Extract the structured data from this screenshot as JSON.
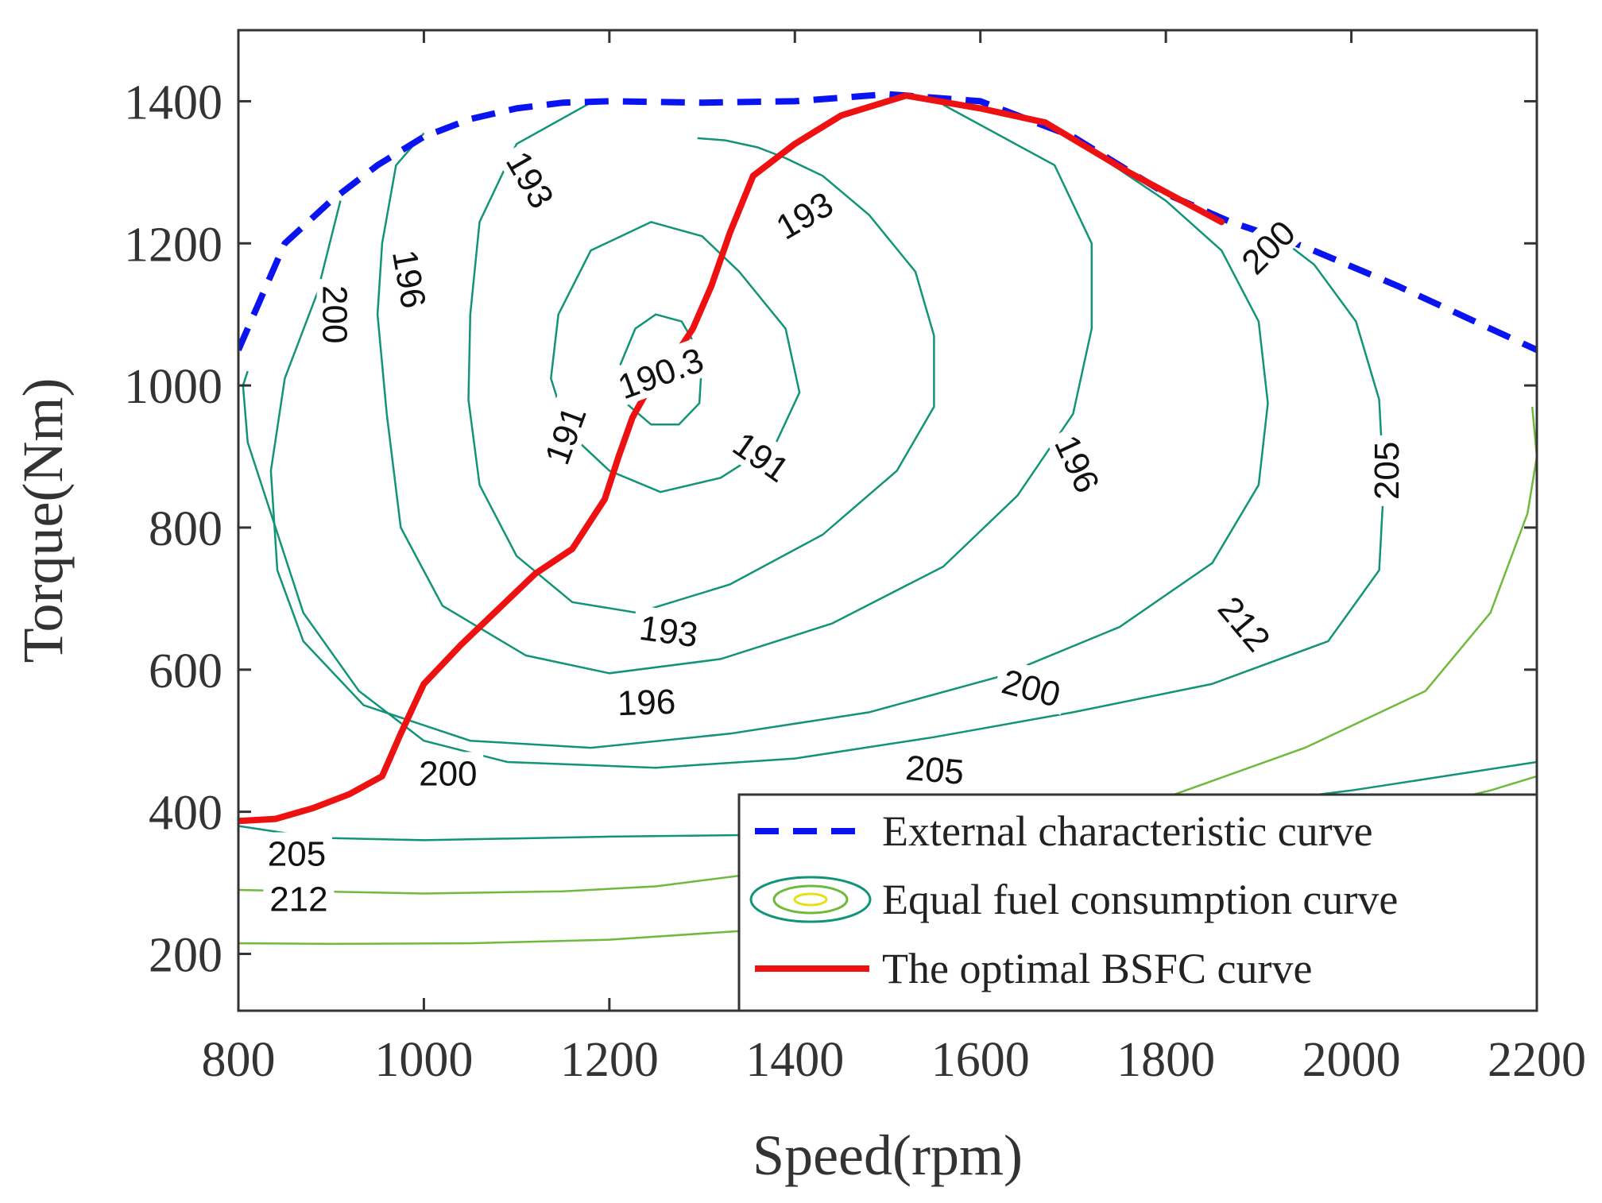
{
  "chart_data": {
    "type": "line",
    "title": "",
    "xlabel": "Speed(rpm)",
    "ylabel": "Torque(Nm)",
    "xlim": [
      800,
      2200
    ],
    "ylim": [
      120,
      1500
    ],
    "xticks": [
      "800",
      "1000",
      "1200",
      "1400",
      "1600",
      "1800",
      "2000",
      "2200"
    ],
    "yticks": [
      "200",
      "400",
      "600",
      "800",
      "1000",
      "1200",
      "1400"
    ],
    "xtick_values": [
      800,
      1000,
      1200,
      1400,
      1600,
      1800,
      2000,
      2200
    ],
    "ytick_values": [
      200,
      400,
      600,
      800,
      1000,
      1200,
      1400
    ],
    "grid": false,
    "legend_position": "bottom-right",
    "series": [
      {
        "name": "External characteristic curve",
        "style": "dashed",
        "color": "#0a14f0",
        "points": [
          [
            800,
            1050
          ],
          [
            850,
            1200
          ],
          [
            900,
            1260
          ],
          [
            950,
            1310
          ],
          [
            1000,
            1350
          ],
          [
            1050,
            1375
          ],
          [
            1100,
            1390
          ],
          [
            1150,
            1398
          ],
          [
            1200,
            1400
          ],
          [
            1300,
            1398
          ],
          [
            1400,
            1400
          ],
          [
            1500,
            1410
          ],
          [
            1600,
            1400
          ],
          [
            1700,
            1350
          ],
          [
            1800,
            1270
          ],
          [
            1870,
            1230
          ],
          [
            1950,
            1195
          ],
          [
            2050,
            1140
          ],
          [
            2150,
            1080
          ],
          [
            2200,
            1050
          ]
        ]
      },
      {
        "name": "The optimal BSFC curve",
        "style": "solid",
        "color": "#ee1111",
        "points": [
          [
            800,
            387
          ],
          [
            840,
            390
          ],
          [
            880,
            405
          ],
          [
            920,
            425
          ],
          [
            955,
            450
          ],
          [
            975,
            510
          ],
          [
            1000,
            580
          ],
          [
            1040,
            635
          ],
          [
            1080,
            685
          ],
          [
            1120,
            735
          ],
          [
            1160,
            770
          ],
          [
            1195,
            840
          ],
          [
            1210,
            900
          ],
          [
            1225,
            955
          ],
          [
            1240,
            990
          ],
          [
            1265,
            1030
          ],
          [
            1290,
            1080
          ],
          [
            1310,
            1140
          ],
          [
            1330,
            1215
          ],
          [
            1355,
            1295
          ],
          [
            1400,
            1340
          ],
          [
            1450,
            1380
          ],
          [
            1520,
            1408
          ],
          [
            1600,
            1390
          ],
          [
            1670,
            1370
          ],
          [
            1760,
            1300
          ],
          [
            1860,
            1230
          ]
        ]
      }
    ],
    "contour_legend_label": "Equal fuel consumption curve",
    "contour_color": "#119477",
    "contour_color_outer": "#6fba3d",
    "contours": [
      {
        "level": "190.3",
        "closed": true,
        "points": [
          [
            1245,
            945
          ],
          [
            1218,
            975
          ],
          [
            1212,
            1030
          ],
          [
            1228,
            1080
          ],
          [
            1250,
            1100
          ],
          [
            1278,
            1090
          ],
          [
            1300,
            1040
          ],
          [
            1297,
            975
          ],
          [
            1275,
            945
          ]
        ]
      },
      {
        "level": "191",
        "closed": true,
        "points": [
          [
            1245,
            1230
          ],
          [
            1180,
            1190
          ],
          [
            1145,
            1100
          ],
          [
            1137,
            1010
          ],
          [
            1155,
            935
          ],
          [
            1200,
            880
          ],
          [
            1255,
            850
          ],
          [
            1320,
            870
          ],
          [
            1380,
            920
          ],
          [
            1405,
            990
          ],
          [
            1390,
            1080
          ],
          [
            1340,
            1160
          ],
          [
            1300,
            1210
          ]
        ]
      },
      {
        "level": "193",
        "closed": false,
        "points": [
          [
            1180,
            1398
          ],
          [
            1100,
            1340
          ],
          [
            1060,
            1230
          ],
          [
            1050,
            1100
          ],
          [
            1048,
            980
          ],
          [
            1060,
            860
          ],
          [
            1100,
            760
          ],
          [
            1160,
            695
          ],
          [
            1230,
            680
          ],
          [
            1330,
            720
          ],
          [
            1430,
            790
          ],
          [
            1510,
            880
          ],
          [
            1550,
            970
          ],
          [
            1550,
            1070
          ],
          [
            1530,
            1160
          ],
          [
            1480,
            1240
          ],
          [
            1430,
            1295
          ],
          [
            1390,
            1320
          ],
          [
            1360,
            1335
          ],
          [
            1325,
            1345
          ],
          [
            1295,
            1348
          ]
        ]
      },
      {
        "level": "196",
        "closed": false,
        "points": [
          [
            1000,
            1355
          ],
          [
            970,
            1310
          ],
          [
            955,
            1200
          ],
          [
            950,
            1100
          ],
          [
            960,
            960
          ],
          [
            975,
            800
          ],
          [
            1020,
            690
          ],
          [
            1110,
            620
          ],
          [
            1200,
            595
          ],
          [
            1320,
            615
          ],
          [
            1440,
            665
          ],
          [
            1560,
            745
          ],
          [
            1640,
            845
          ],
          [
            1700,
            960
          ],
          [
            1720,
            1080
          ],
          [
            1720,
            1200
          ],
          [
            1680,
            1310
          ],
          [
            1560,
            1395
          ]
        ]
      },
      {
        "level": "200",
        "closed": false,
        "points": [
          [
            910,
            1260
          ],
          [
            885,
            1130
          ],
          [
            850,
            1010
          ],
          [
            835,
            880
          ],
          [
            842,
            740
          ],
          [
            870,
            640
          ],
          [
            935,
            550
          ],
          [
            1050,
            500
          ],
          [
            1180,
            490
          ],
          [
            1330,
            510
          ],
          [
            1480,
            540
          ],
          [
            1620,
            590
          ],
          [
            1750,
            660
          ],
          [
            1850,
            750
          ],
          [
            1900,
            860
          ],
          [
            1910,
            975
          ],
          [
            1900,
            1090
          ],
          [
            1860,
            1190
          ],
          [
            1800,
            1260
          ],
          [
            1720,
            1330
          ]
        ]
      },
      {
        "level": "205",
        "closed": false,
        "points": [
          [
            810,
            1020
          ],
          [
            805,
            1000
          ],
          [
            810,
            920
          ],
          [
            840,
            800
          ],
          [
            870,
            680
          ],
          [
            930,
            570
          ],
          [
            1000,
            500
          ],
          [
            1090,
            470
          ],
          [
            1250,
            462
          ],
          [
            1400,
            475
          ],
          [
            1550,
            505
          ],
          [
            1700,
            540
          ],
          [
            1850,
            580
          ],
          [
            1975,
            640
          ],
          [
            2030,
            740
          ],
          [
            2035,
            860
          ],
          [
            2030,
            980
          ],
          [
            2005,
            1090
          ],
          [
            1960,
            1170
          ],
          [
            1930,
            1200
          ]
        ]
      },
      {
        "level": "205",
        "closed": false,
        "points": [
          [
            800,
            380
          ],
          [
            850,
            370
          ],
          [
            900,
            363
          ],
          [
            1000,
            360
          ],
          [
            1200,
            365
          ],
          [
            1400,
            368
          ],
          [
            1600,
            378
          ],
          [
            1800,
            398
          ],
          [
            2000,
            430
          ],
          [
            2100,
            450
          ],
          [
            2200,
            470
          ]
        ]
      },
      {
        "level": "212",
        "closed": false,
        "points": [
          [
            800,
            290
          ],
          [
            880,
            288
          ],
          [
            1000,
            285
          ],
          [
            1150,
            288
          ],
          [
            1250,
            295
          ],
          [
            1400,
            320
          ],
          [
            1600,
            360
          ],
          [
            1800,
            420
          ],
          [
            1950,
            490
          ],
          [
            2080,
            570
          ],
          [
            2150,
            680
          ],
          [
            2190,
            820
          ],
          [
            2200,
            900
          ],
          [
            2195,
            970
          ]
        ]
      },
      {
        "level": "",
        "closed": false,
        "points": [
          [
            800,
            215
          ],
          [
            900,
            214
          ],
          [
            1050,
            215
          ],
          [
            1200,
            220
          ],
          [
            1350,
            233
          ],
          [
            1500,
            255
          ],
          [
            1700,
            300
          ],
          [
            1900,
            355
          ],
          [
            2050,
            400
          ],
          [
            2150,
            430
          ],
          [
            2200,
            450
          ]
        ]
      }
    ],
    "contour_labels": [
      {
        "text": "190.3",
        "x": 1255,
        "y": 1018,
        "angle": 20
      },
      {
        "text": "191",
        "x": 1152,
        "y": 930,
        "angle": 70
      },
      {
        "text": "191",
        "x": 1364,
        "y": 900,
        "angle": -35
      },
      {
        "text": "193",
        "x": 1115,
        "y": 1290,
        "angle": -60
      },
      {
        "text": "193",
        "x": 1410,
        "y": 1240,
        "angle": 30
      },
      {
        "text": "193",
        "x": 1264,
        "y": 655,
        "angle": -8
      },
      {
        "text": "196",
        "x": 985,
        "y": 1150,
        "angle": -80
      },
      {
        "text": "196",
        "x": 1240,
        "y": 555,
        "angle": 2
      },
      {
        "text": "196",
        "x": 1705,
        "y": 890,
        "angle": -65
      },
      {
        "text": "200",
        "x": 905,
        "y": 1100,
        "angle": -90
      },
      {
        "text": "200",
        "x": 1026,
        "y": 455,
        "angle": 0
      },
      {
        "text": "200",
        "x": 1655,
        "y": 575,
        "angle": -15
      },
      {
        "text": "200",
        "x": 1910,
        "y": 1195,
        "angle": 45
      },
      {
        "text": "205",
        "x": 2037,
        "y": 880,
        "angle": 90
      },
      {
        "text": "205",
        "x": 1551,
        "y": 460,
        "angle": -5
      },
      {
        "text": "205",
        "x": 863,
        "y": 342,
        "angle": 0
      },
      {
        "text": "212",
        "x": 1885,
        "y": 665,
        "angle": -50
      },
      {
        "text": "212",
        "x": 865,
        "y": 278,
        "angle": 0
      }
    ],
    "legend": [
      "External characteristic curve",
      "Equal fuel consumption curve",
      "The optimal BSFC curve"
    ]
  }
}
